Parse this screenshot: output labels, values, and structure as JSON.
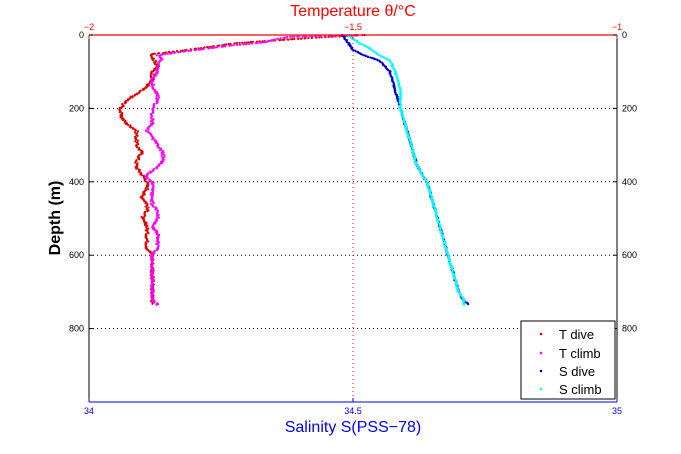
{
  "colors": {
    "t_axis": "#ff0000",
    "s_axis": "#0000ff",
    "t_dive": "#dd0000",
    "t_climb": "#ff00ff",
    "s_dive": "#0000cc",
    "s_climb": "#00ffff",
    "grid": "#000000"
  },
  "chart_data": {
    "type": "scatter",
    "title": "Temperature θ/°C",
    "xlabel": "Salinity S(PSS−78)",
    "ylabel": "Depth (m)",
    "y_reversed": true,
    "ylim": [
      0,
      1000
    ],
    "y_ticks": [
      0,
      200,
      400,
      600,
      800
    ],
    "y_tick_labels": [
      "0",
      "200",
      "400",
      "600",
      "800"
    ],
    "temperature_axis": {
      "position": "top",
      "range": [
        -2,
        -1
      ],
      "ticks": [
        -2,
        -1.5,
        -1
      ],
      "tick_labels": [
        "−2",
        "−1.5",
        "−1"
      ]
    },
    "salinity_axis": {
      "position": "bottom",
      "range": [
        34,
        35
      ],
      "ticks": [
        34,
        34.5,
        35
      ],
      "tick_labels": [
        "34",
        "34.5",
        "35"
      ]
    },
    "grid": "dotted",
    "legend_position": "bottom-right",
    "series": [
      {
        "name": "T dive",
        "axis": "temperature",
        "color_key": "t_dive",
        "points": [
          [
            -1.48,
            0
          ],
          [
            -1.58,
            8
          ],
          [
            -1.72,
            22
          ],
          [
            -1.82,
            42
          ],
          [
            -1.88,
            52
          ],
          [
            -1.88,
            60
          ],
          [
            -1.87,
            85
          ],
          [
            -1.88,
            100
          ],
          [
            -1.88,
            120
          ],
          [
            -1.89,
            140
          ],
          [
            -1.91,
            160
          ],
          [
            -1.93,
            180
          ],
          [
            -1.94,
            200
          ],
          [
            -1.94,
            220
          ],
          [
            -1.93,
            240
          ],
          [
            -1.91,
            260
          ],
          [
            -1.91,
            280
          ],
          [
            -1.91,
            300
          ],
          [
            -1.9,
            320
          ],
          [
            -1.91,
            345
          ],
          [
            -1.91,
            360
          ],
          [
            -1.9,
            380
          ],
          [
            -1.89,
            400
          ],
          [
            -1.89,
            420
          ],
          [
            -1.9,
            440
          ],
          [
            -1.89,
            460
          ],
          [
            -1.89,
            480
          ],
          [
            -1.9,
            500
          ],
          [
            -1.89,
            520
          ],
          [
            -1.89,
            540
          ],
          [
            -1.89,
            560
          ],
          [
            -1.89,
            580
          ],
          [
            -1.88,
            600
          ],
          [
            -1.88,
            630
          ],
          [
            -1.88,
            660
          ],
          [
            -1.88,
            690
          ],
          [
            -1.88,
            720
          ],
          [
            -1.88,
            735
          ]
        ]
      },
      {
        "name": "T climb",
        "axis": "temperature",
        "color_key": "t_climb",
        "points": [
          [
            -1.87,
            735
          ],
          [
            -1.88,
            720
          ],
          [
            -1.88,
            690
          ],
          [
            -1.88,
            660
          ],
          [
            -1.88,
            630
          ],
          [
            -1.88,
            600
          ],
          [
            -1.87,
            580
          ],
          [
            -1.87,
            560
          ],
          [
            -1.87,
            540
          ],
          [
            -1.88,
            520
          ],
          [
            -1.87,
            500
          ],
          [
            -1.87,
            480
          ],
          [
            -1.88,
            460
          ],
          [
            -1.88,
            440
          ],
          [
            -1.88,
            420
          ],
          [
            -1.88,
            400
          ],
          [
            -1.89,
            390
          ],
          [
            -1.89,
            380
          ],
          [
            -1.87,
            360
          ],
          [
            -1.86,
            340
          ],
          [
            -1.86,
            320
          ],
          [
            -1.87,
            300
          ],
          [
            -1.88,
            280
          ],
          [
            -1.89,
            260
          ],
          [
            -1.88,
            240
          ],
          [
            -1.88,
            220
          ],
          [
            -1.88,
            200
          ],
          [
            -1.87,
            180
          ],
          [
            -1.87,
            160
          ],
          [
            -1.88,
            140
          ],
          [
            -1.88,
            120
          ],
          [
            -1.87,
            100
          ],
          [
            -1.87,
            80
          ],
          [
            -1.86,
            65
          ],
          [
            -1.87,
            55
          ],
          [
            -1.82,
            45
          ],
          [
            -1.74,
            30
          ],
          [
            -1.67,
            20
          ],
          [
            -1.64,
            10
          ],
          [
            -1.62,
            5
          ],
          [
            -1.49,
            0
          ]
        ]
      },
      {
        "name": "S dive",
        "axis": "salinity",
        "color_key": "s_dive",
        "points": [
          [
            34.48,
            0
          ],
          [
            34.49,
            20
          ],
          [
            34.5,
            40
          ],
          [
            34.52,
            55
          ],
          [
            34.55,
            70
          ],
          [
            34.57,
            100
          ],
          [
            34.58,
            150
          ],
          [
            34.59,
            200
          ],
          [
            34.6,
            250
          ],
          [
            34.61,
            300
          ],
          [
            34.62,
            350
          ],
          [
            34.63,
            380
          ],
          [
            34.64,
            400
          ],
          [
            34.65,
            450
          ],
          [
            34.66,
            500
          ],
          [
            34.67,
            550
          ],
          [
            34.68,
            600
          ],
          [
            34.69,
            650
          ],
          [
            34.7,
            700
          ],
          [
            34.71,
            725
          ],
          [
            34.72,
            735
          ]
        ]
      },
      {
        "name": "S climb",
        "axis": "salinity",
        "color_key": "s_climb",
        "points": [
          [
            34.71,
            735
          ],
          [
            34.71,
            720
          ],
          [
            34.7,
            700
          ],
          [
            34.69,
            650
          ],
          [
            34.68,
            600
          ],
          [
            34.67,
            550
          ],
          [
            34.66,
            500
          ],
          [
            34.65,
            450
          ],
          [
            34.64,
            400
          ],
          [
            34.63,
            380
          ],
          [
            34.62,
            350
          ],
          [
            34.61,
            300
          ],
          [
            34.6,
            250
          ],
          [
            34.59,
            200
          ],
          [
            34.59,
            150
          ],
          [
            34.58,
            100
          ],
          [
            34.57,
            70
          ],
          [
            34.55,
            55
          ],
          [
            34.53,
            35
          ],
          [
            34.51,
            20
          ],
          [
            34.5,
            10
          ],
          [
            34.49,
            0
          ]
        ]
      }
    ]
  }
}
